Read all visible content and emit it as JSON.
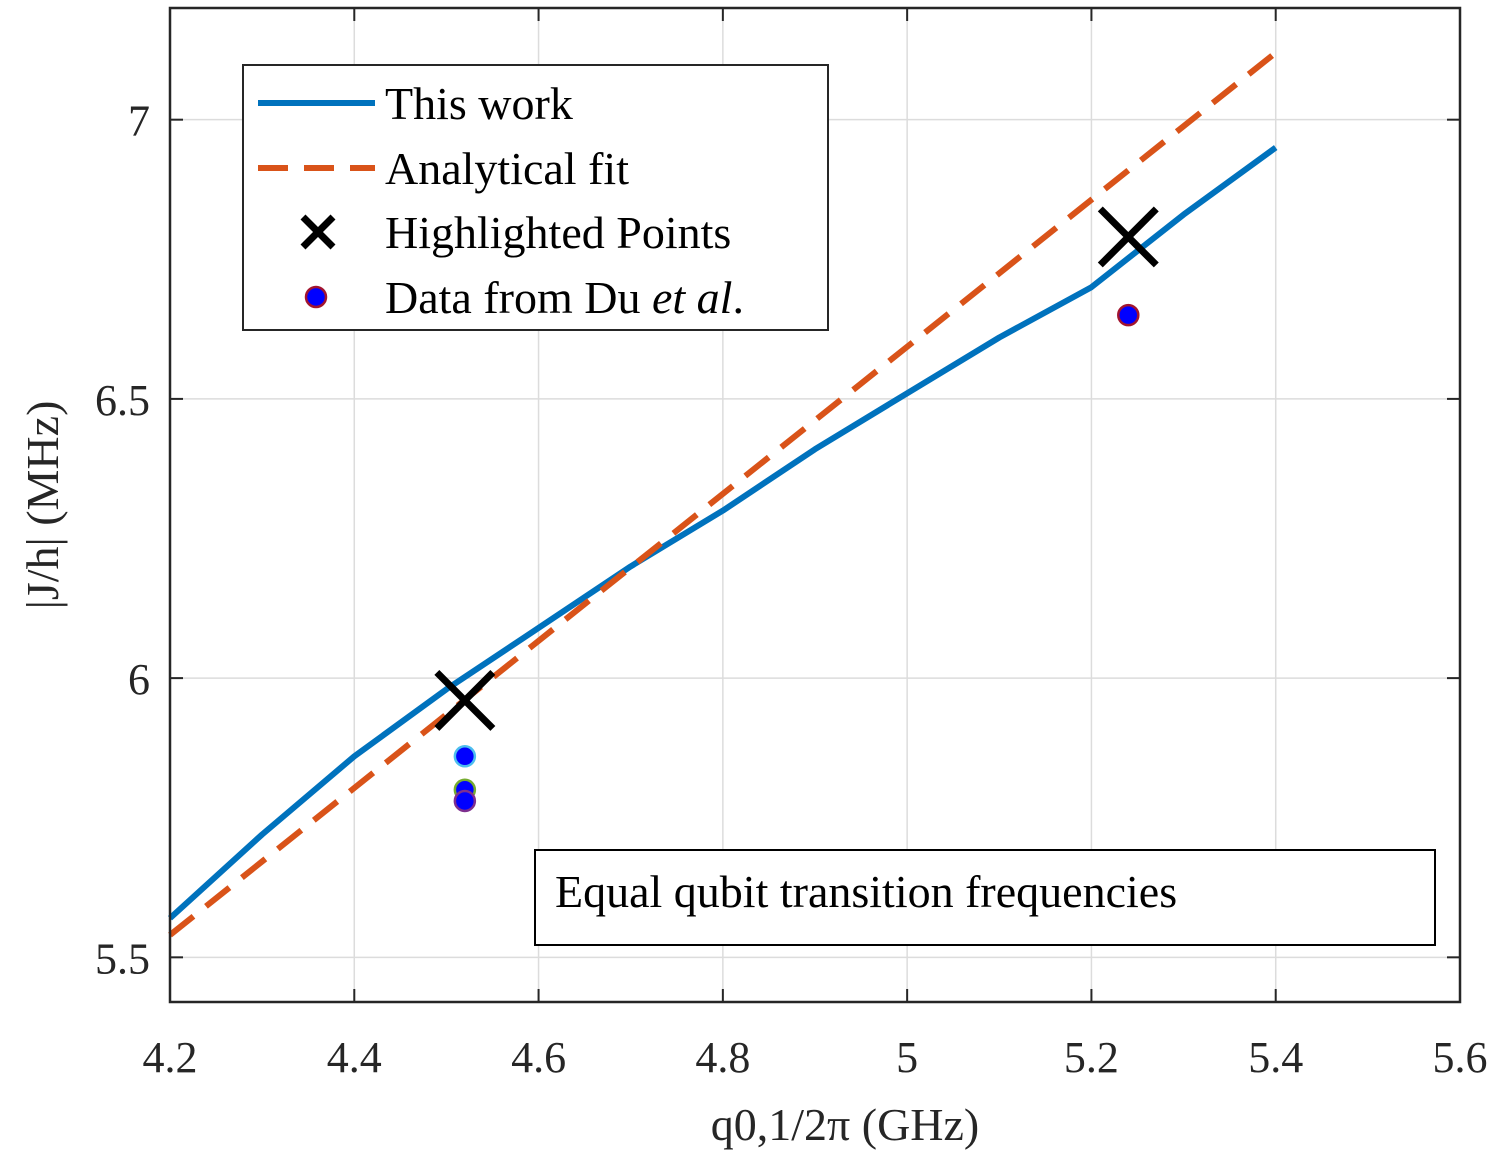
{
  "chart_data": {
    "type": "line",
    "xlabel": "q0,1/2π (GHz)",
    "ylabel": "|J/h| (MHz)",
    "xlim": [
      4.2,
      5.6
    ],
    "ylim": [
      5.42,
      7.2
    ],
    "xticks": [
      4.2,
      4.4,
      4.6,
      4.8,
      5.0,
      5.2,
      5.4,
      5.6
    ],
    "xtick_labels": [
      "4.2",
      "4.4",
      "4.6",
      "4.8",
      "5",
      "5.2",
      "5.4",
      "5.6"
    ],
    "yticks": [
      5.5,
      6.0,
      6.5,
      7.0
    ],
    "ytick_labels": [
      "5.5",
      "6",
      "6.5",
      "7"
    ],
    "grid": true,
    "legend_position": "top-left",
    "series": [
      {
        "name": "This work",
        "kind": "line",
        "style": "solid",
        "color": "#0072BD",
        "x": [
          4.2,
          4.3,
          4.4,
          4.5,
          4.6,
          4.7,
          4.8,
          4.9,
          5.0,
          5.1,
          5.2,
          5.3,
          5.4
        ],
        "y": [
          5.57,
          5.72,
          5.86,
          5.98,
          6.09,
          6.2,
          6.3,
          6.41,
          6.51,
          6.61,
          6.7,
          6.83,
          6.95
        ]
      },
      {
        "name": "Analytical fit",
        "kind": "line",
        "style": "dashed",
        "color": "#D95319",
        "x": [
          4.2,
          5.4
        ],
        "y": [
          5.54,
          7.12
        ]
      },
      {
        "name": "Highlighted Points",
        "kind": "marker",
        "marker": "x",
        "color": "#000000",
        "x": [
          4.52,
          5.24
        ],
        "y": [
          5.96,
          6.79
        ]
      },
      {
        "name": "Data from Du et al.",
        "legend_plain": "Data from Du ",
        "legend_italic": "et al",
        "legend_tail": ".",
        "kind": "marker",
        "marker": "o",
        "color": "#0000FF",
        "x": [
          4.52,
          4.52,
          4.52,
          5.24
        ],
        "y": [
          5.86,
          5.8,
          5.78,
          6.65
        ],
        "edge_colors": [
          "#4DBEEE",
          "#77AC30",
          "#7E2F8E",
          "#A2142F"
        ]
      }
    ],
    "annotation": "Equal qubit transition frequencies"
  }
}
